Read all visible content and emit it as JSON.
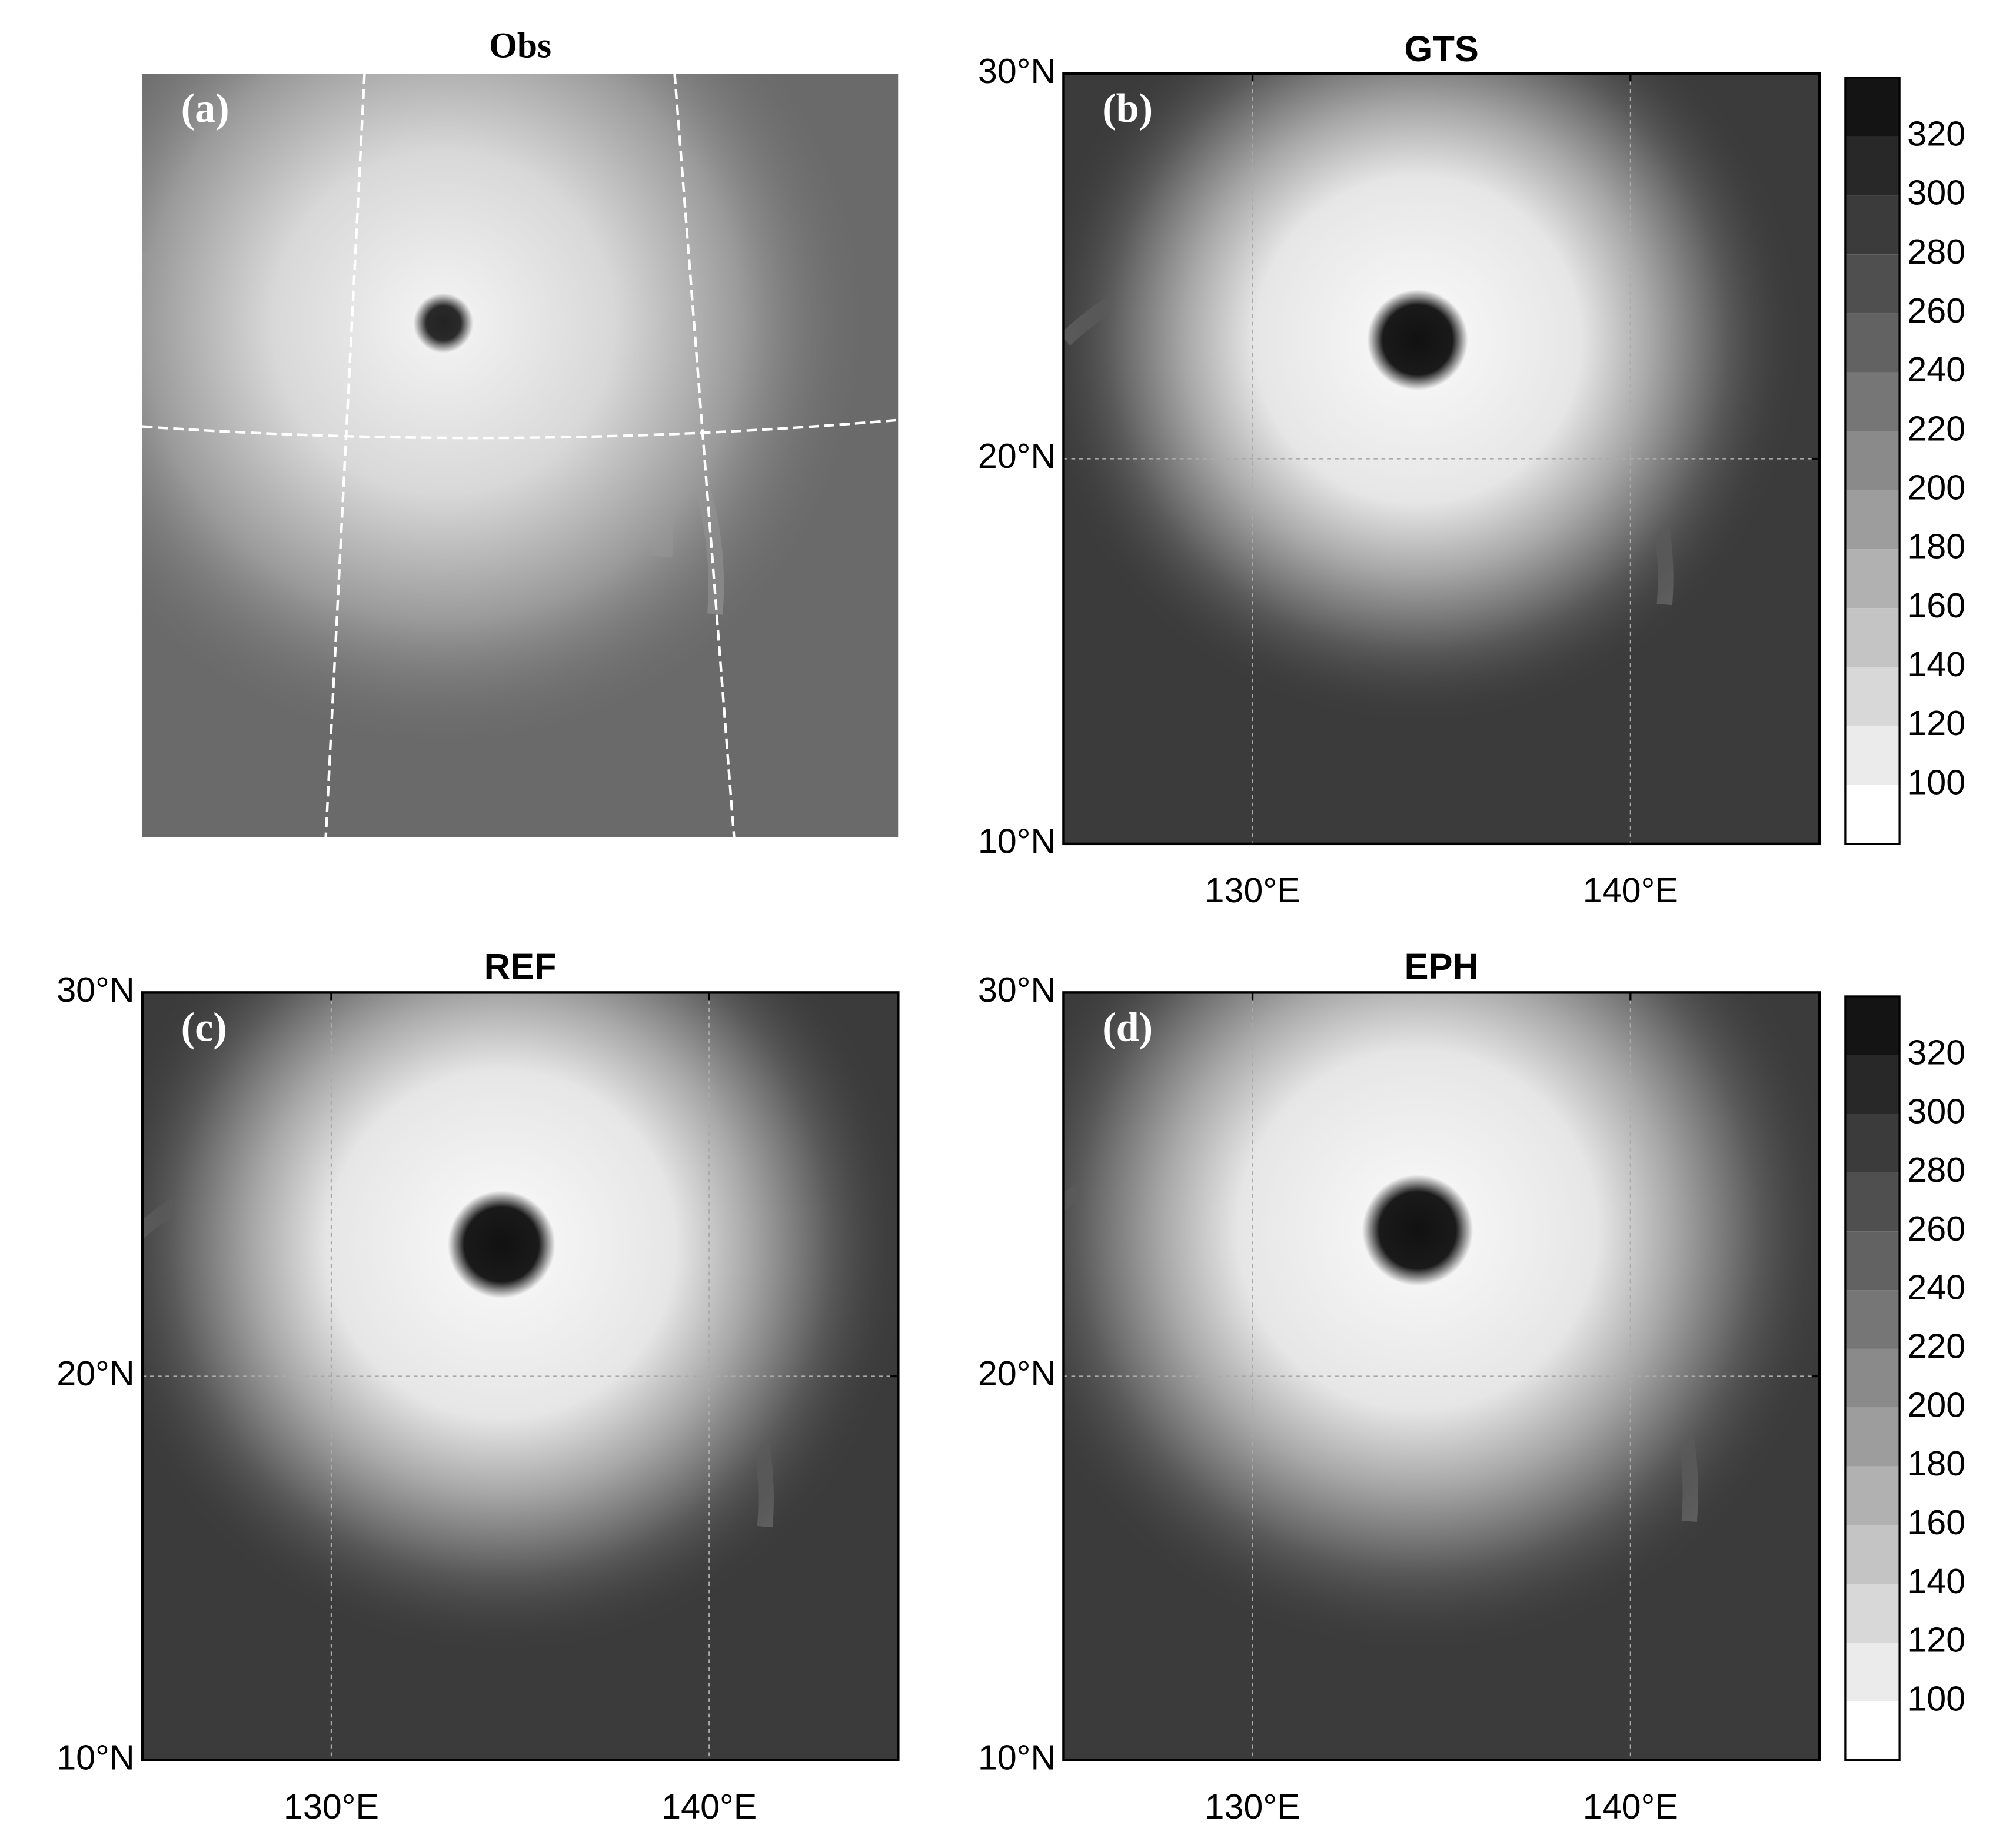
{
  "figure": {
    "panels": [
      {
        "title": "Obs",
        "label": "(a)"
      },
      {
        "title": "GTS",
        "label": "(b)",
        "yticks": [
          "30°N",
          "20°N",
          "10°N"
        ],
        "xticks": [
          "130°E",
          "140°E"
        ]
      },
      {
        "title": "REF",
        "label": "(c)",
        "yticks": [
          "30°N",
          "20°N",
          "10°N"
        ],
        "xticks": [
          "130°E",
          "140°E"
        ]
      },
      {
        "title": "EPH",
        "label": "(d)",
        "yticks": [
          "30°N",
          "20°N",
          "10°N"
        ],
        "xticks": [
          "130°E",
          "140°E"
        ]
      }
    ],
    "colorbar": {
      "ticks": [
        100,
        120,
        140,
        160,
        180,
        200,
        220,
        240,
        260,
        280,
        300,
        320
      ]
    }
  }
}
